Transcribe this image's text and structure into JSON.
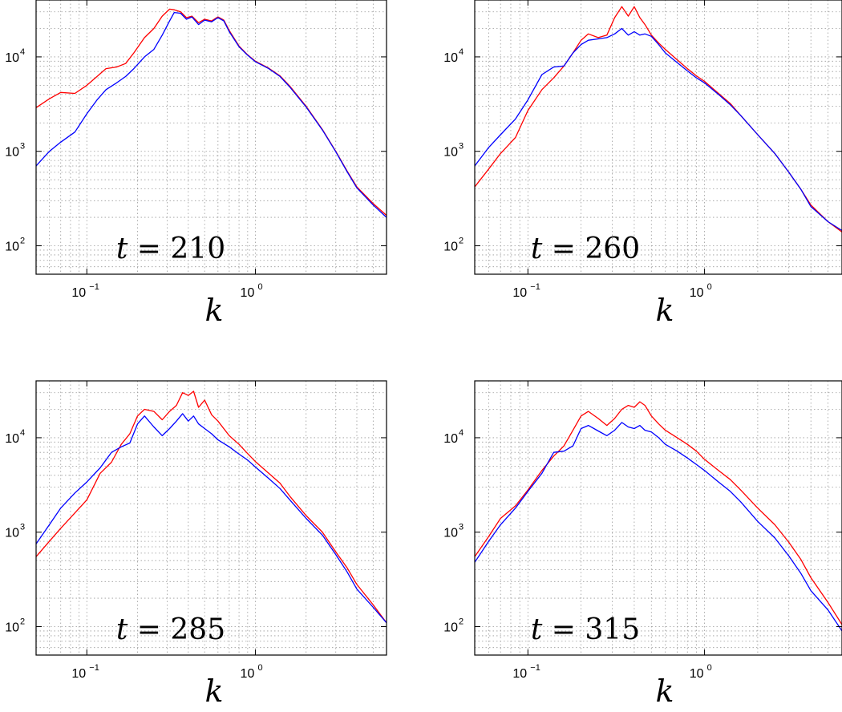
{
  "chart_data": [
    {
      "type": "line",
      "annotation": {
        "var": "t",
        "op": " = ",
        "value": "210"
      },
      "xlabel": "k",
      "ylabel": "",
      "xscale": "log",
      "yscale": "log",
      "xlim": [
        0.05,
        6
      ],
      "ylim": [
        50,
        40000
      ],
      "grid": true,
      "series": [
        {
          "color": "#ff0000",
          "x": [
            0.05,
            0.06,
            0.07,
            0.085,
            0.1,
            0.115,
            0.13,
            0.15,
            0.17,
            0.19,
            0.22,
            0.25,
            0.28,
            0.31,
            0.33,
            0.36,
            0.39,
            0.42,
            0.46,
            0.5,
            0.55,
            0.6,
            0.65,
            0.7,
            0.8,
            0.9,
            1.0,
            1.2,
            1.4,
            1.6,
            2.0,
            2.5,
            3.0,
            3.5,
            4.0,
            5.0,
            6.0
          ],
          "y": [
            2900,
            3600,
            4200,
            4100,
            5000,
            6200,
            7500,
            7800,
            8500,
            11000,
            16000,
            20000,
            27000,
            32000,
            31500,
            30000,
            26000,
            27000,
            23000,
            25000,
            24000,
            26500,
            24500,
            19000,
            13000,
            10500,
            9000,
            7600,
            6300,
            4900,
            3000,
            1700,
            1000,
            620,
            420,
            280,
            210
          ]
        },
        {
          "color": "#0000ff",
          "x": [
            0.05,
            0.06,
            0.07,
            0.085,
            0.1,
            0.115,
            0.13,
            0.15,
            0.17,
            0.19,
            0.22,
            0.25,
            0.28,
            0.31,
            0.33,
            0.36,
            0.39,
            0.42,
            0.46,
            0.5,
            0.55,
            0.6,
            0.65,
            0.7,
            0.8,
            0.9,
            1.0,
            1.2,
            1.4,
            1.6,
            2.0,
            2.5,
            3.0,
            3.5,
            4.0,
            5.0,
            6.0
          ],
          "y": [
            700,
            1000,
            1250,
            1600,
            2500,
            3500,
            4500,
            5300,
            6200,
            7500,
            10000,
            12000,
            17000,
            24000,
            29500,
            29000,
            25000,
            26500,
            22000,
            24500,
            23500,
            26000,
            24000,
            18500,
            12800,
            10400,
            8900,
            7500,
            6200,
            4800,
            2950,
            1680,
            990,
            610,
            410,
            270,
            200
          ]
        }
      ]
    },
    {
      "type": "line",
      "annotation": {
        "var": "t",
        "op": " = ",
        "value": "260"
      },
      "xlabel": "k",
      "ylabel": "",
      "xscale": "log",
      "yscale": "log",
      "xlim": [
        0.05,
        6
      ],
      "ylim": [
        50,
        40000
      ],
      "grid": true,
      "series": [
        {
          "color": "#ff0000",
          "x": [
            0.05,
            0.06,
            0.07,
            0.085,
            0.1,
            0.12,
            0.14,
            0.16,
            0.18,
            0.2,
            0.22,
            0.25,
            0.28,
            0.31,
            0.34,
            0.37,
            0.4,
            0.43,
            0.46,
            0.5,
            0.55,
            0.6,
            0.7,
            0.8,
            0.9,
            1.0,
            1.2,
            1.4,
            1.6,
            2.0,
            2.5,
            3.0,
            3.5,
            4.0,
            5.0,
            6.0
          ],
          "y": [
            420,
            650,
            950,
            1400,
            2700,
            4500,
            6000,
            8000,
            11000,
            15000,
            17500,
            16000,
            17000,
            26000,
            34000,
            27000,
            34000,
            26000,
            22000,
            17000,
            14000,
            12000,
            9300,
            7500,
            6300,
            5500,
            4100,
            3200,
            2400,
            1500,
            950,
            600,
            400,
            270,
            180,
            140
          ]
        },
        {
          "color": "#0000ff",
          "x": [
            0.05,
            0.06,
            0.07,
            0.085,
            0.1,
            0.12,
            0.14,
            0.16,
            0.18,
            0.2,
            0.22,
            0.25,
            0.28,
            0.31,
            0.34,
            0.37,
            0.4,
            0.43,
            0.46,
            0.5,
            0.55,
            0.6,
            0.7,
            0.8,
            0.9,
            1.0,
            1.2,
            1.4,
            1.6,
            2.0,
            2.5,
            3.0,
            3.5,
            4.0,
            5.0,
            6.0
          ],
          "y": [
            700,
            1100,
            1500,
            2200,
            3500,
            6500,
            7800,
            8000,
            11000,
            13500,
            15000,
            15500,
            16000,
            17500,
            20000,
            17000,
            18500,
            17000,
            17500,
            16500,
            13500,
            11000,
            8700,
            7100,
            6000,
            5300,
            4000,
            3100,
            2400,
            1500,
            950,
            600,
            400,
            260,
            180,
            145
          ]
        }
      ]
    },
    {
      "type": "line",
      "annotation": {
        "var": "t",
        "op": " = ",
        "value": "285"
      },
      "xlabel": "k",
      "ylabel": "",
      "xscale": "log",
      "yscale": "log",
      "xlim": [
        0.05,
        6
      ],
      "ylim": [
        50,
        40000
      ],
      "grid": true,
      "series": [
        {
          "color": "#ff0000",
          "x": [
            0.05,
            0.06,
            0.07,
            0.085,
            0.1,
            0.12,
            0.14,
            0.16,
            0.18,
            0.2,
            0.22,
            0.25,
            0.28,
            0.31,
            0.34,
            0.37,
            0.4,
            0.43,
            0.46,
            0.5,
            0.55,
            0.6,
            0.7,
            0.8,
            0.9,
            1.0,
            1.2,
            1.4,
            1.6,
            2.0,
            2.5,
            3.0,
            3.5,
            4.0,
            5.0,
            6.0
          ],
          "y": [
            550,
            800,
            1100,
            1600,
            2200,
            4200,
            5500,
            8500,
            11000,
            17000,
            20000,
            19000,
            15500,
            19000,
            22000,
            30000,
            28000,
            31000,
            21000,
            25000,
            17500,
            15000,
            10500,
            8500,
            6800,
            5600,
            4200,
            3300,
            2400,
            1500,
            1000,
            620,
            420,
            280,
            170,
            110
          ]
        },
        {
          "color": "#0000ff",
          "x": [
            0.05,
            0.06,
            0.07,
            0.085,
            0.1,
            0.12,
            0.14,
            0.16,
            0.18,
            0.2,
            0.22,
            0.25,
            0.28,
            0.31,
            0.34,
            0.37,
            0.4,
            0.43,
            0.46,
            0.5,
            0.55,
            0.6,
            0.7,
            0.8,
            0.9,
            1.0,
            1.2,
            1.4,
            1.6,
            2.0,
            2.5,
            3.0,
            3.5,
            4.0,
            5.0,
            6.0
          ],
          "y": [
            750,
            1200,
            1800,
            2600,
            3400,
            4800,
            7000,
            8000,
            8800,
            14000,
            17000,
            13000,
            10500,
            12500,
            15000,
            18000,
            15000,
            17000,
            14000,
            12500,
            11000,
            9500,
            8000,
            6700,
            5800,
            4900,
            3700,
            2900,
            2200,
            1400,
            930,
            580,
            380,
            250,
            160,
            110
          ]
        }
      ]
    },
    {
      "type": "line",
      "annotation": {
        "var": "t",
        "op": " = ",
        "value": "315"
      },
      "xlabel": "k",
      "ylabel": "",
      "xscale": "log",
      "yscale": "log",
      "xlim": [
        0.05,
        6
      ],
      "ylim": [
        50,
        40000
      ],
      "grid": true,
      "series": [
        {
          "color": "#ff0000",
          "x": [
            0.05,
            0.06,
            0.07,
            0.085,
            0.1,
            0.12,
            0.14,
            0.16,
            0.18,
            0.2,
            0.22,
            0.25,
            0.28,
            0.31,
            0.34,
            0.37,
            0.4,
            0.43,
            0.46,
            0.5,
            0.55,
            0.6,
            0.7,
            0.8,
            0.9,
            1.0,
            1.2,
            1.4,
            1.6,
            2.0,
            2.5,
            3.0,
            3.5,
            4.0,
            5.0,
            6.0
          ],
          "y": [
            550,
            900,
            1400,
            1900,
            2800,
            4500,
            6400,
            8200,
            12000,
            17000,
            19000,
            16000,
            13500,
            16000,
            20000,
            22000,
            21000,
            24000,
            22000,
            17000,
            14000,
            12000,
            10000,
            8500,
            7200,
            5900,
            4500,
            3600,
            2800,
            1800,
            1200,
            780,
            520,
            330,
            180,
            105
          ]
        },
        {
          "color": "#0000ff",
          "x": [
            0.05,
            0.06,
            0.07,
            0.085,
            0.1,
            0.12,
            0.14,
            0.16,
            0.18,
            0.2,
            0.22,
            0.25,
            0.28,
            0.31,
            0.34,
            0.37,
            0.4,
            0.43,
            0.46,
            0.5,
            0.55,
            0.6,
            0.7,
            0.8,
            0.9,
            1.0,
            1.2,
            1.4,
            1.6,
            2.0,
            2.5,
            3.0,
            3.5,
            4.0,
            5.0,
            6.0
          ],
          "y": [
            480,
            800,
            1200,
            1800,
            2700,
            4200,
            7000,
            7200,
            8200,
            12500,
            13500,
            11800,
            10500,
            12000,
            14500,
            13000,
            12500,
            13500,
            12000,
            11500,
            10000,
            8500,
            7200,
            6100,
            5200,
            4500,
            3400,
            2700,
            2100,
            1300,
            870,
            560,
            370,
            240,
            150,
            90
          ]
        }
      ]
    }
  ]
}
